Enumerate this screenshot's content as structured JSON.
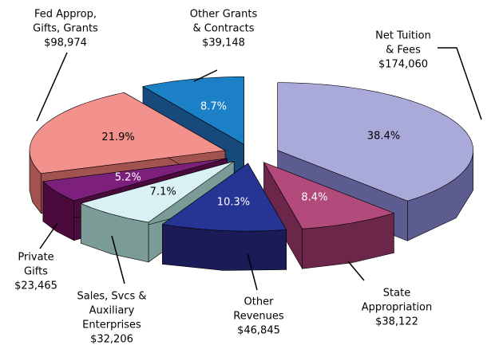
{
  "chart_data": {
    "type": "pie3d",
    "categories": [
      [
        "Net Tuition",
        "& Fees"
      ],
      [
        "State",
        "Appropriation"
      ],
      [
        "Other",
        "Revenues"
      ],
      [
        "Sales, Svcs &",
        "Auxiliary",
        "Enterprises"
      ],
      [
        "Private",
        "Gifts"
      ],
      [
        "Fed Approp,",
        "Gifts, Grants"
      ],
      [
        "Other Grants",
        "& Contracts"
      ]
    ],
    "values": [
      174060,
      38122,
      46845,
      32206,
      23465,
      98974,
      39148
    ],
    "value_labels": [
      "$174,060",
      "$38,122",
      "$46,845",
      "$32,206",
      "$23,465",
      "$98,974",
      "$39,148"
    ],
    "percents": [
      38.4,
      8.4,
      10.3,
      7.1,
      5.2,
      21.9,
      8.7
    ],
    "percent_labels": [
      "38.4%",
      "8.4%",
      "10.3%",
      "7.1%",
      "5.2%",
      "21.9%",
      "8.7%"
    ],
    "colors": [
      "#a9a9da",
      "#b24a7c",
      "#263594",
      "#d9f1f4",
      "#7c207c",
      "#f3918d",
      "#1b80c6"
    ],
    "side_colors": [
      "#5c5c91",
      "#6c2649",
      "#1b1b57",
      "#7b9b96",
      "#4a0b3c",
      "#a2534f",
      "#17497b"
    ],
    "percent_label_colors": [
      "#000000",
      "#ffffff",
      "#ffffff",
      "#000000",
      "#ffffff",
      "#000000",
      "#ffffff"
    ]
  }
}
